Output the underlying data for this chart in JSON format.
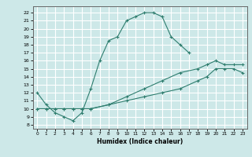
{
  "xlabel": "Humidex (Indice chaleur)",
  "bg_color": "#cde8e8",
  "grid_color": "#ffffff",
  "line_color": "#2e7d6e",
  "xlim": [
    -0.5,
    23.5
  ],
  "ylim": [
    7.5,
    22.8
  ],
  "xticks": [
    0,
    1,
    2,
    3,
    4,
    5,
    6,
    7,
    8,
    9,
    10,
    11,
    12,
    13,
    14,
    15,
    16,
    17,
    18,
    19,
    20,
    21,
    22,
    23
  ],
  "yticks": [
    8,
    9,
    10,
    11,
    12,
    13,
    14,
    15,
    16,
    17,
    18,
    19,
    20,
    21,
    22
  ],
  "main_x": [
    0,
    1,
    2,
    3,
    4,
    5,
    6,
    7,
    8,
    9,
    10,
    11,
    12,
    13,
    14,
    15,
    16,
    17
  ],
  "main_y": [
    12,
    10.5,
    9.5,
    9.0,
    8.5,
    9.5,
    12.5,
    16.0,
    18.5,
    19.0,
    21.0,
    21.5,
    22.0,
    22.0,
    21.5,
    19.0,
    18.0,
    17.0
  ],
  "flat1_x": [
    0,
    1,
    2,
    3,
    4,
    5,
    6,
    8,
    10,
    12,
    14,
    16,
    18,
    19,
    20,
    21,
    22,
    23
  ],
  "flat1_y": [
    10.0,
    10.0,
    10.0,
    10.0,
    10.0,
    10.0,
    10.0,
    10.5,
    11.0,
    11.5,
    12.0,
    12.5,
    13.5,
    14.0,
    15.0,
    15.0,
    15.0,
    14.5
  ],
  "flat2_x": [
    0,
    1,
    2,
    3,
    4,
    5,
    6,
    8,
    10,
    12,
    14,
    16,
    18,
    19,
    20,
    21,
    22,
    23
  ],
  "flat2_y": [
    10.0,
    10.0,
    10.0,
    10.0,
    10.0,
    10.0,
    10.0,
    10.5,
    11.5,
    12.5,
    13.5,
    14.5,
    15.0,
    15.5,
    16.0,
    15.5,
    15.5,
    15.5
  ]
}
